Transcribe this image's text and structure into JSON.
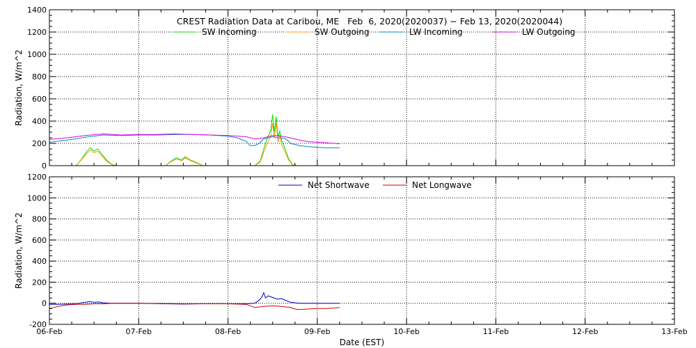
{
  "title": "CREST Radiation Data at Caribou, ME   Feb  6, 2020(2020037) − Feb 13, 2020(2020044)",
  "xlabel": "Date (EST)",
  "x_tick_labels": [
    "06-Feb",
    "07-Feb",
    "08-Feb",
    "09-Feb",
    "10-Feb",
    "11-Feb",
    "12-Feb",
    "13-Feb"
  ],
  "chart_data": [
    {
      "type": "line",
      "ylabel": "Radiation, W/m^2",
      "xlim": [
        0,
        7
      ],
      "ylim": [
        0,
        1400
      ],
      "yticks": [
        0,
        200,
        400,
        600,
        800,
        1000,
        1200,
        1400
      ],
      "grid": true,
      "legend_position": "top",
      "series": [
        {
          "name": "SW Incoming",
          "color": "#00dd00",
          "x": [
            0.3,
            0.36,
            0.42,
            0.46,
            0.5,
            0.54,
            0.58,
            0.64,
            0.7,
            0.75,
            1.3,
            1.36,
            1.42,
            1.48,
            1.52,
            1.58,
            1.64,
            1.72,
            2.3,
            2.36,
            2.4,
            2.44,
            2.48,
            2.5,
            2.52,
            2.54,
            2.56,
            2.58,
            2.6,
            2.64,
            2.68,
            2.72,
            2.77
          ],
          "y": [
            0,
            60,
            130,
            160,
            130,
            150,
            110,
            50,
            10,
            0,
            0,
            40,
            70,
            50,
            80,
            50,
            30,
            0,
            0,
            40,
            150,
            250,
            320,
            460,
            300,
            440,
            260,
            310,
            230,
            150,
            60,
            10,
            0
          ]
        },
        {
          "name": "SW Outgoing",
          "color": "#ff9900",
          "x": [
            0.3,
            0.36,
            0.42,
            0.46,
            0.5,
            0.54,
            0.58,
            0.64,
            0.7,
            0.75,
            1.3,
            1.36,
            1.42,
            1.48,
            1.52,
            1.58,
            1.64,
            1.72,
            2.3,
            2.36,
            2.4,
            2.44,
            2.48,
            2.5,
            2.52,
            2.54,
            2.56,
            2.58,
            2.6,
            2.64,
            2.68,
            2.72,
            2.77
          ],
          "y": [
            0,
            55,
            110,
            140,
            115,
            130,
            95,
            40,
            8,
            0,
            0,
            35,
            60,
            45,
            70,
            45,
            25,
            0,
            0,
            30,
            120,
            200,
            270,
            380,
            250,
            390,
            210,
            280,
            190,
            120,
            50,
            8,
            0
          ]
        },
        {
          "name": "LW Incoming",
          "color": "#0088cc",
          "x": [
            0,
            0.2,
            0.4,
            0.6,
            0.8,
            1.0,
            1.2,
            1.4,
            1.6,
            1.8,
            2.0,
            2.1,
            2.2,
            2.25,
            2.3,
            2.35,
            2.4,
            2.45,
            2.5,
            2.55,
            2.6,
            2.65,
            2.7,
            2.8,
            2.9,
            3.0,
            3.1,
            3.2,
            3.25
          ],
          "y": [
            210,
            230,
            255,
            275,
            270,
            275,
            275,
            280,
            280,
            275,
            265,
            250,
            220,
            180,
            180,
            200,
            240,
            250,
            260,
            250,
            250,
            240,
            200,
            180,
            170,
            165,
            160,
            160,
            160
          ]
        },
        {
          "name": "LW Outgoing",
          "color": "#dd00dd",
          "x": [
            0,
            0.2,
            0.4,
            0.6,
            0.8,
            1.0,
            1.2,
            1.4,
            1.6,
            1.8,
            2.0,
            2.2,
            2.3,
            2.4,
            2.5,
            2.6,
            2.7,
            2.8,
            2.9,
            3.0,
            3.1,
            3.2,
            3.25
          ],
          "y": [
            235,
            250,
            270,
            285,
            275,
            280,
            280,
            285,
            280,
            275,
            270,
            260,
            240,
            250,
            270,
            265,
            250,
            230,
            215,
            210,
            205,
            200,
            195
          ]
        }
      ]
    },
    {
      "type": "line",
      "ylabel": "Radiation, W/m^2",
      "xlim": [
        0,
        7
      ],
      "ylim": [
        -200,
        1200
      ],
      "yticks": [
        -200,
        0,
        200,
        400,
        600,
        800,
        1000,
        1200
      ],
      "grid": true,
      "legend_position": "top",
      "series": [
        {
          "name": "Net Shortwave",
          "color": "#0000cc",
          "x": [
            0,
            0.1,
            0.2,
            0.3,
            0.4,
            0.45,
            0.5,
            0.55,
            0.6,
            0.7,
            1.0,
            1.3,
            1.5,
            1.7,
            2.0,
            2.2,
            2.3,
            2.35,
            2.38,
            2.4,
            2.42,
            2.45,
            2.5,
            2.55,
            2.6,
            2.65,
            2.7,
            2.8,
            3.0,
            3.25
          ],
          "y": [
            -10,
            -10,
            -8,
            -5,
            10,
            15,
            10,
            12,
            5,
            0,
            0,
            -5,
            -8,
            -5,
            -5,
            -5,
            0,
            30,
            60,
            100,
            50,
            70,
            55,
            40,
            45,
            25,
            10,
            0,
            0,
            0
          ]
        },
        {
          "name": "Net Longwave",
          "color": "#cc0000",
          "x": [
            0,
            0.05,
            0.1,
            0.2,
            0.3,
            0.4,
            0.5,
            0.6,
            0.7,
            1.0,
            1.5,
            1.8,
            2.0,
            2.2,
            2.3,
            2.4,
            2.5,
            2.6,
            2.7,
            2.75,
            2.8,
            2.9,
            3.0,
            3.1,
            3.2,
            3.25
          ],
          "y": [
            -50,
            -40,
            -30,
            -15,
            -10,
            -10,
            -5,
            -5,
            0,
            0,
            -5,
            -5,
            -5,
            -10,
            -40,
            -30,
            -25,
            -30,
            -40,
            -55,
            -60,
            -55,
            -50,
            -50,
            -45,
            -40
          ]
        }
      ]
    }
  ]
}
